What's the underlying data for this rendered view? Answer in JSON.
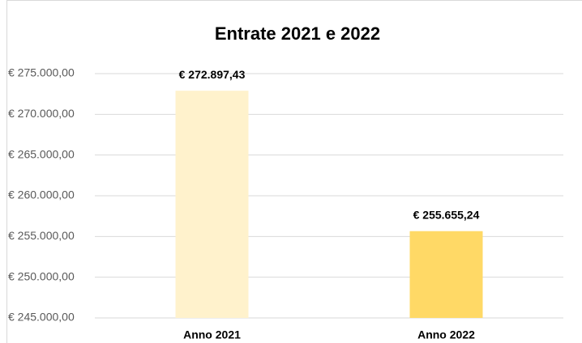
{
  "chart_data": {
    "type": "bar",
    "title": "Entrate 2021 e 2022",
    "categories": [
      "Anno 2021",
      "Anno 2022"
    ],
    "values": [
      272897.43,
      255655.24
    ],
    "value_labels": [
      "€ 272.897,43",
      "€ 255.655,24"
    ],
    "colors": [
      "#fff2cc",
      "#ffd966"
    ],
    "ylim": [
      245000,
      275000
    ],
    "yticks": [
      {
        "value": 245000,
        "label": "€ 245.000,00"
      },
      {
        "value": 250000,
        "label": "€ 250.000,00"
      },
      {
        "value": 255000,
        "label": "€ 255.000,00"
      },
      {
        "value": 260000,
        "label": "€ 260.000,00"
      },
      {
        "value": 265000,
        "label": "€ 265.000,00"
      },
      {
        "value": 270000,
        "label": "€ 270.000,00"
      },
      {
        "value": 275000,
        "label": "€ 275.000,00"
      }
    ],
    "grid": true
  }
}
